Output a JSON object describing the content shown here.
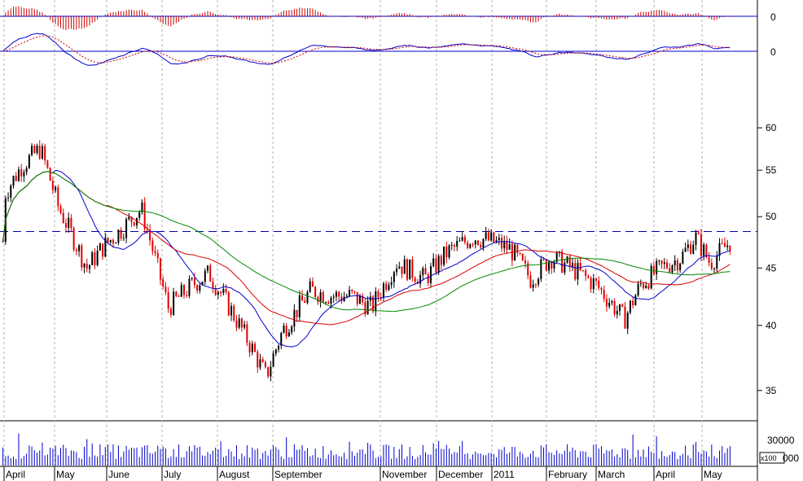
{
  "colors": {
    "up_candle": "#000000",
    "down_candle": "#e00000",
    "ma_fast": "#0000cc",
    "ma_mid": "#dd0000",
    "ma_slow": "#008800",
    "resistance": "#0000aa",
    "volume": "#0000cc",
    "histogram": "#cc0000",
    "macd_line": "#0000cc",
    "signal_line": "#cc0000",
    "grid": "#b0b0b0"
  },
  "axes": {
    "macd_hist_zero": "0",
    "macd_zero": "0",
    "price_ticks": [
      "60",
      "55",
      "50",
      "45",
      "40",
      "35"
    ],
    "volume_tick": "30000",
    "volume_scale": "x100",
    "vol_scale_box": "000",
    "months": [
      "April",
      "May",
      "June",
      "July",
      "August",
      "September",
      "November",
      "December",
      "2011",
      "February",
      "March",
      "April",
      "May"
    ]
  },
  "chart_data": {
    "type": "candlestick",
    "y_scale": "log",
    "price_range": [
      33,
      66
    ],
    "resistance_level": 48.5,
    "series": [
      {
        "name": "",
        "kind": "moving-average-fast",
        "color": "#0000cc"
      },
      {
        "name": "",
        "kind": "moving-average-mid",
        "color": "#dd0000"
      },
      {
        "name": "",
        "kind": "moving-average-slow",
        "color": "#008800"
      }
    ],
    "close_path": [
      {
        "d": "April",
        "v": 52.5
      },
      {
        "d": "mid April",
        "v": 55.5
      },
      {
        "d": "late April",
        "v": 57.5
      },
      {
        "d": "early May",
        "v": 51
      },
      {
        "d": "mid May",
        "v": 45
      },
      {
        "d": "late May",
        "v": 47
      },
      {
        "d": "early June",
        "v": 48.5
      },
      {
        "d": "mid June",
        "v": 50.8
      },
      {
        "d": "late June",
        "v": 45.5
      },
      {
        "d": "early July",
        "v": 41.5
      },
      {
        "d": "mid July",
        "v": 43.5
      },
      {
        "d": "late July",
        "v": 44.5
      },
      {
        "d": "early August",
        "v": 41.5
      },
      {
        "d": "mid August",
        "v": 38.5
      },
      {
        "d": "late August",
        "v": 36
      },
      {
        "d": "early September",
        "v": 39.5
      },
      {
        "d": "mid September",
        "v": 43
      },
      {
        "d": "late September",
        "v": 42.5
      },
      {
        "d": "October",
        "v": 42.5
      },
      {
        "d": "late October",
        "v": 41.5
      },
      {
        "d": "early November",
        "v": 45.5
      },
      {
        "d": "late November",
        "v": 44
      },
      {
        "d": "early December",
        "v": 46.5
      },
      {
        "d": "late December",
        "v": 48
      },
      {
        "d": "2011",
        "v": 47.5
      },
      {
        "d": "mid January",
        "v": 46.8
      },
      {
        "d": "late January",
        "v": 44
      },
      {
        "d": "early February",
        "v": 46
      },
      {
        "d": "mid February",
        "v": 45
      },
      {
        "d": "early March",
        "v": 43.5
      },
      {
        "d": "mid March",
        "v": 40.5
      },
      {
        "d": "late March",
        "v": 43.5
      },
      {
        "d": "early April",
        "v": 45
      },
      {
        "d": "mid April",
        "v": 46
      },
      {
        "d": "late April",
        "v": 48
      },
      {
        "d": "early May",
        "v": 45.5
      },
      {
        "d": "mid May",
        "v": 47.5
      }
    ],
    "volume_max": 38000
  }
}
